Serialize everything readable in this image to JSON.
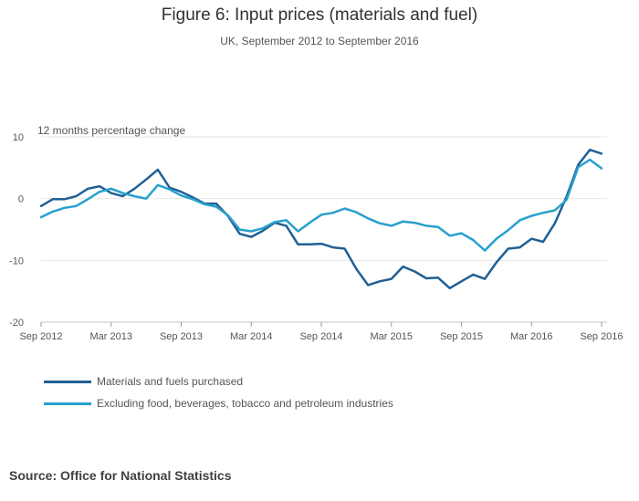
{
  "title": "Figure 6: Input prices (materials and fuel)",
  "subtitle": "UK, September 2012 to September 2016",
  "source": "Source: Office for National Statistics",
  "chart_data": {
    "type": "line",
    "title": "Figure 6: Input prices (materials and fuel)",
    "subtitle": "UK, September 2012 to September 2016",
    "ylabel": "12 months percentage change",
    "xlabel": "",
    "ylim": [
      -20,
      10
    ],
    "yticks": [
      10,
      0,
      -10,
      -20
    ],
    "xlim": [
      0,
      48
    ],
    "xticks": [
      {
        "label": "Sep 2012",
        "index": 0
      },
      {
        "label": "Mar 2013",
        "index": 6
      },
      {
        "label": "Sep 2013",
        "index": 12
      },
      {
        "label": "Mar 2014",
        "index": 18
      },
      {
        "label": "Sep 2014",
        "index": 24
      },
      {
        "label": "Mar 2015",
        "index": 30
      },
      {
        "label": "Sep 2015",
        "index": 36
      },
      {
        "label": "Mar 2016",
        "index": 42
      },
      {
        "label": "Sep 2016",
        "index": 48
      }
    ],
    "grid": true,
    "legend_position": "bottom-left",
    "series": [
      {
        "name": "Materials and fuels purchased",
        "color": "#206095",
        "values": [
          -1.2,
          -0.1,
          -0.1,
          0.4,
          1.6,
          2.0,
          0.9,
          0.4,
          1.6,
          3.1,
          4.7,
          1.8,
          1.1,
          0.2,
          -0.8,
          -0.8,
          -2.8,
          -5.7,
          -6.2,
          -5.2,
          -3.9,
          -4.4,
          -7.4,
          -7.4,
          -7.3,
          -7.9,
          -8.1,
          -11.4,
          -14.0,
          -13.4,
          -13.0,
          -11.0,
          -11.8,
          -12.9,
          -12.8,
          -14.5,
          -13.4,
          -12.3,
          -13.0,
          -10.3,
          -8.1,
          -7.9,
          -6.5,
          -7.0,
          -4.0,
          0.3,
          5.5,
          7.9,
          7.3
        ]
      },
      {
        "name": "Excluding food, beverages, tobacco and petroleum industries",
        "color": "#27a0cc",
        "values": [
          -3.0,
          -2.1,
          -1.5,
          -1.2,
          -0.1,
          1.1,
          1.6,
          0.9,
          0.4,
          0.0,
          2.2,
          1.5,
          0.5,
          -0.1,
          -0.9,
          -1.3,
          -2.7,
          -5.0,
          -5.3,
          -4.8,
          -3.8,
          -3.5,
          -5.3,
          -3.9,
          -2.6,
          -2.3,
          -1.6,
          -2.2,
          -3.2,
          -4.0,
          -4.4,
          -3.7,
          -3.9,
          -4.4,
          -4.6,
          -6.0,
          -5.6,
          -6.7,
          -8.4,
          -6.5,
          -5.1,
          -3.5,
          -2.8,
          -2.3,
          -1.9,
          -0.2,
          5.1,
          6.3,
          4.9
        ]
      }
    ]
  }
}
